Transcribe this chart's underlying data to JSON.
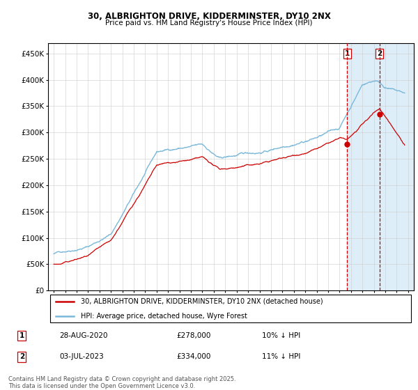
{
  "title1": "30, ALBRIGHTON DRIVE, KIDDERMINSTER, DY10 2NX",
  "title2": "Price paid vs. HM Land Registry's House Price Index (HPI)",
  "ylim": [
    0,
    470000
  ],
  "yticks": [
    0,
    50000,
    100000,
    150000,
    200000,
    250000,
    300000,
    350000,
    400000,
    450000
  ],
  "ytick_labels": [
    "£0",
    "£50K",
    "£100K",
    "£150K",
    "£200K",
    "£250K",
    "£300K",
    "£350K",
    "£400K",
    "£450K"
  ],
  "hpi_color": "#7ab8d9",
  "price_color": "#cc0000",
  "vline_color": "#cc0000",
  "shade_color": "#ddeef8",
  "legend1": "30, ALBRIGHTON DRIVE, KIDDERMINSTER, DY10 2NX (detached house)",
  "legend2": "HPI: Average price, detached house, Wyre Forest",
  "purchase1_date": "28-AUG-2020",
  "purchase1_price": "£278,000",
  "purchase1_note": "10% ↓ HPI",
  "purchase2_date": "03-JUL-2023",
  "purchase2_price": "£334,000",
  "purchase2_note": "11% ↓ HPI",
  "footer": "Contains HM Land Registry data © Crown copyright and database right 2025.\nThis data is licensed under the Open Government Licence v3.0.",
  "xlim_start": 1994.5,
  "xlim_end": 2026.5
}
